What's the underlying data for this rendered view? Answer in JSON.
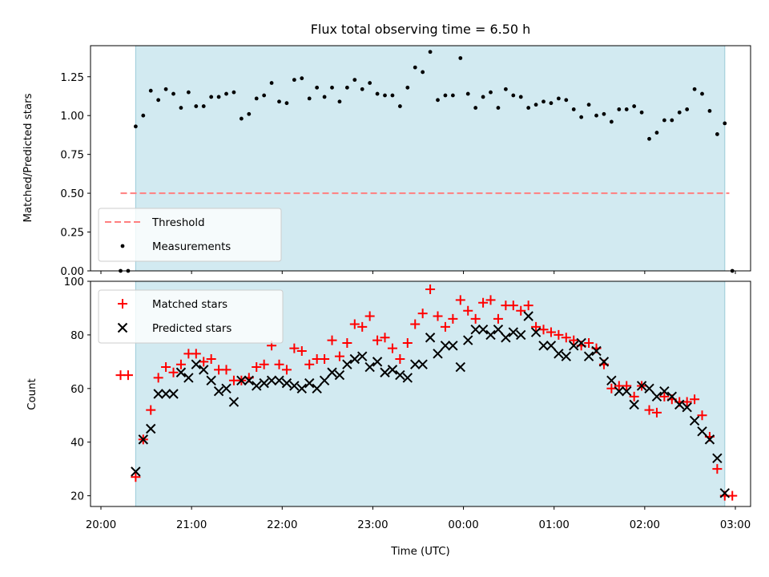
{
  "chart_data": [
    {
      "type": "scatter",
      "title": "Flux total observing time = 6.50 h",
      "xlabel": "",
      "ylabel": "Matched/Predicted stars",
      "xlim": [
        "20:00",
        "03:00"
      ],
      "ylim": [
        0,
        1.45
      ],
      "yticks": [
        "0.00",
        "0.25",
        "0.50",
        "0.75",
        "1.00",
        "1.25"
      ],
      "ytick_values": [
        0,
        0.25,
        0.5,
        0.75,
        1.0,
        1.25
      ],
      "observing_window": [
        "20:23",
        "02:53"
      ],
      "legend": {
        "location": "lower-left",
        "entries": [
          "Threshold",
          "Measurements"
        ]
      },
      "threshold": {
        "name": "Threshold",
        "value": 0.5,
        "x_range": [
          "20:13",
          "02:56"
        ],
        "color": "#ff7f7f",
        "style": "dashed"
      },
      "series": [
        {
          "name": "Measurements",
          "marker": "dot",
          "color": "#000000",
          "x": [
            "20:13",
            "20:18",
            "20:23",
            "20:28",
            "20:33",
            "20:38",
            "20:43",
            "20:48",
            "20:53",
            "20:58",
            "21:03",
            "21:08",
            "21:13",
            "21:18",
            "21:23",
            "21:28",
            "21:33",
            "21:38",
            "21:43",
            "21:48",
            "21:53",
            "21:58",
            "22:03",
            "22:08",
            "22:13",
            "22:18",
            "22:23",
            "22:28",
            "22:33",
            "22:38",
            "22:43",
            "22:48",
            "22:53",
            "22:58",
            "23:03",
            "23:08",
            "23:13",
            "23:18",
            "23:23",
            "23:28",
            "23:33",
            "23:38",
            "23:43",
            "23:48",
            "23:53",
            "23:58",
            "00:03",
            "00:08",
            "00:13",
            "00:18",
            "00:23",
            "00:28",
            "00:33",
            "00:38",
            "00:43",
            "00:48",
            "00:53",
            "00:58",
            "01:03",
            "01:08",
            "01:13",
            "01:18",
            "01:23",
            "01:28",
            "01:33",
            "01:38",
            "01:43",
            "01:48",
            "01:53",
            "01:58",
            "02:03",
            "02:08",
            "02:13",
            "02:18",
            "02:23",
            "02:28",
            "02:33",
            "02:38",
            "02:43",
            "02:48",
            "02:53",
            "02:58"
          ],
          "y": [
            0.0,
            0.0,
            0.93,
            1.0,
            1.16,
            1.1,
            1.17,
            1.14,
            1.05,
            1.15,
            1.06,
            1.06,
            1.12,
            1.12,
            1.14,
            1.15,
            0.98,
            1.01,
            1.11,
            1.13,
            1.21,
            1.09,
            1.08,
            1.23,
            1.24,
            1.11,
            1.18,
            1.12,
            1.18,
            1.09,
            1.18,
            1.23,
            1.17,
            1.21,
            1.14,
            1.13,
            1.13,
            1.06,
            1.18,
            1.31,
            1.28,
            1.41,
            1.1,
            1.13,
            1.13,
            1.37,
            1.14,
            1.05,
            1.12,
            1.15,
            1.05,
            1.17,
            1.13,
            1.12,
            1.05,
            1.07,
            1.09,
            1.08,
            1.11,
            1.1,
            1.04,
            0.99,
            1.07,
            1.0,
            1.01,
            0.96,
            1.04,
            1.04,
            1.06,
            1.02,
            0.85,
            0.89,
            0.97,
            0.97,
            1.02,
            1.04,
            1.17,
            1.14,
            1.03,
            0.88,
            0.95,
            0.0
          ]
        }
      ]
    },
    {
      "type": "scatter",
      "title": "",
      "xlabel": "Time (UTC)",
      "ylabel": "Count",
      "xlim": [
        "20:00",
        "03:00"
      ],
      "xticks": [
        "20:00",
        "21:00",
        "22:00",
        "23:00",
        "00:00",
        "01:00",
        "02:00",
        "03:00"
      ],
      "ylim": [
        16,
        100
      ],
      "yticks": [
        "20",
        "40",
        "60",
        "80",
        "100"
      ],
      "ytick_values": [
        20,
        40,
        60,
        80,
        100
      ],
      "observing_window": [
        "20:23",
        "02:53"
      ],
      "legend": {
        "location": "upper-left",
        "entries": [
          "Matched stars",
          "Predicted stars"
        ]
      },
      "series": [
        {
          "name": "Matched stars",
          "marker": "plus",
          "color": "#ff0000",
          "x": [
            "20:13",
            "20:18",
            "20:23",
            "20:28",
            "20:33",
            "20:38",
            "20:43",
            "20:48",
            "20:53",
            "20:58",
            "21:03",
            "21:08",
            "21:13",
            "21:18",
            "21:23",
            "21:28",
            "21:33",
            "21:38",
            "21:43",
            "21:48",
            "21:53",
            "21:58",
            "22:03",
            "22:08",
            "22:13",
            "22:18",
            "22:23",
            "22:28",
            "22:33",
            "22:38",
            "22:43",
            "22:48",
            "22:53",
            "22:58",
            "23:03",
            "23:08",
            "23:13",
            "23:18",
            "23:23",
            "23:28",
            "23:33",
            "23:38",
            "23:43",
            "23:48",
            "23:53",
            "23:58",
            "00:03",
            "00:08",
            "00:13",
            "00:18",
            "00:23",
            "00:28",
            "00:33",
            "00:38",
            "00:43",
            "00:48",
            "00:53",
            "00:58",
            "01:03",
            "01:08",
            "01:13",
            "01:18",
            "01:23",
            "01:28",
            "01:33",
            "01:38",
            "01:43",
            "01:48",
            "01:53",
            "01:58",
            "02:03",
            "02:08",
            "02:13",
            "02:18",
            "02:23",
            "02:28",
            "02:33",
            "02:38",
            "02:43",
            "02:48",
            "02:53",
            "02:58"
          ],
          "y": [
            65,
            65,
            27,
            41,
            52,
            64,
            68,
            66,
            69,
            73,
            73,
            70,
            71,
            67,
            67,
            63,
            63,
            64,
            68,
            69,
            76,
            69,
            67,
            75,
            74,
            69,
            71,
            71,
            78,
            72,
            77,
            84,
            83,
            87,
            78,
            79,
            75,
            71,
            77,
            84,
            88,
            97,
            87,
            83,
            86,
            93,
            89,
            86,
            92,
            93,
            86,
            91,
            91,
            89,
            91,
            83,
            82,
            81,
            80,
            79,
            78,
            76,
            77,
            75,
            69,
            60,
            61,
            61,
            57,
            61,
            52,
            51,
            57,
            56,
            55,
            55,
            56,
            50,
            42,
            30,
            20,
            20
          ]
        },
        {
          "name": "Predicted stars",
          "marker": "x",
          "color": "#000000",
          "x": [
            "20:23",
            "20:28",
            "20:33",
            "20:38",
            "20:43",
            "20:48",
            "20:53",
            "20:58",
            "21:03",
            "21:08",
            "21:13",
            "21:18",
            "21:23",
            "21:28",
            "21:33",
            "21:38",
            "21:43",
            "21:48",
            "21:53",
            "21:58",
            "22:03",
            "22:08",
            "22:13",
            "22:18",
            "22:23",
            "22:28",
            "22:33",
            "22:38",
            "22:43",
            "22:48",
            "22:53",
            "22:58",
            "23:03",
            "23:08",
            "23:13",
            "23:18",
            "23:23",
            "23:28",
            "23:33",
            "23:38",
            "23:43",
            "23:48",
            "23:53",
            "23:58",
            "00:03",
            "00:08",
            "00:13",
            "00:18",
            "00:23",
            "00:28",
            "00:33",
            "00:38",
            "00:43",
            "00:48",
            "00:53",
            "00:58",
            "01:03",
            "01:08",
            "01:13",
            "01:18",
            "01:23",
            "01:28",
            "01:33",
            "01:38",
            "01:43",
            "01:48",
            "01:53",
            "01:58",
            "02:03",
            "02:08",
            "02:13",
            "02:18",
            "02:23",
            "02:28",
            "02:33",
            "02:38",
            "02:43",
            "02:48",
            "02:53"
          ],
          "y": [
            29,
            41,
            45,
            58,
            58,
            58,
            66,
            64,
            69,
            67,
            63,
            59,
            60,
            55,
            63,
            63,
            61,
            62,
            63,
            63,
            62,
            61,
            60,
            62,
            60,
            63,
            66,
            65,
            69,
            71,
            72,
            68,
            70,
            66,
            67,
            65,
            64,
            69,
            69,
            79,
            73,
            76,
            76,
            68,
            78,
            82,
            82,
            80,
            82,
            79,
            81,
            80,
            87,
            81,
            76,
            76,
            73,
            72,
            76,
            77,
            72,
            74,
            70,
            63,
            59,
            59,
            54,
            61,
            60,
            57,
            59,
            57,
            54,
            53,
            48,
            44,
            41,
            34,
            21
          ]
        }
      ]
    }
  ]
}
